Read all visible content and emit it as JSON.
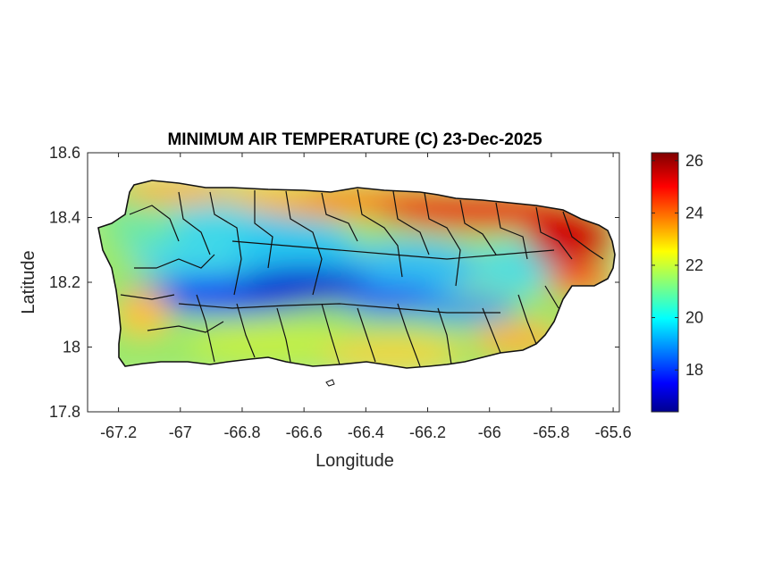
{
  "chart_data": {
    "type": "heatmap",
    "title": "MINIMUM AIR TEMPERATURE (C) 23-Dec-2025",
    "xlabel": "Longitude",
    "ylabel": "Latitude",
    "xlim": [
      -67.3,
      -65.58
    ],
    "ylim": [
      17.8,
      18.6
    ],
    "xticks": [
      -67.2,
      -67,
      -66.8,
      -66.6,
      -66.4,
      -66.2,
      -66,
      -65.8,
      -65.6
    ],
    "xtick_labels": [
      "-67.2",
      "-67",
      "-66.8",
      "-66.6",
      "-66.4",
      "-66.2",
      "-66",
      "-65.8",
      "-65.6"
    ],
    "yticks": [
      17.8,
      18,
      18.2,
      18.4,
      18.6
    ],
    "ytick_labels": [
      "17.8",
      "18",
      "18.2",
      "18.4",
      "18.6"
    ],
    "colorbar": {
      "colormap": "jet",
      "range": [
        16.4,
        26.3
      ],
      "ticks": [
        18,
        20,
        22,
        24,
        26
      ],
      "tick_labels": [
        "18",
        "20",
        "22",
        "24",
        "26"
      ]
    },
    "grid": false,
    "summary": {
      "coldest_region": "central mountain ridge near -66.8 to -66.5 longitude, 18.15-18.2 latitude (~17-18 C)",
      "warmest_region": "north-east coast near -65.9 to -65.6 longitude (~25-26 C)"
    }
  }
}
